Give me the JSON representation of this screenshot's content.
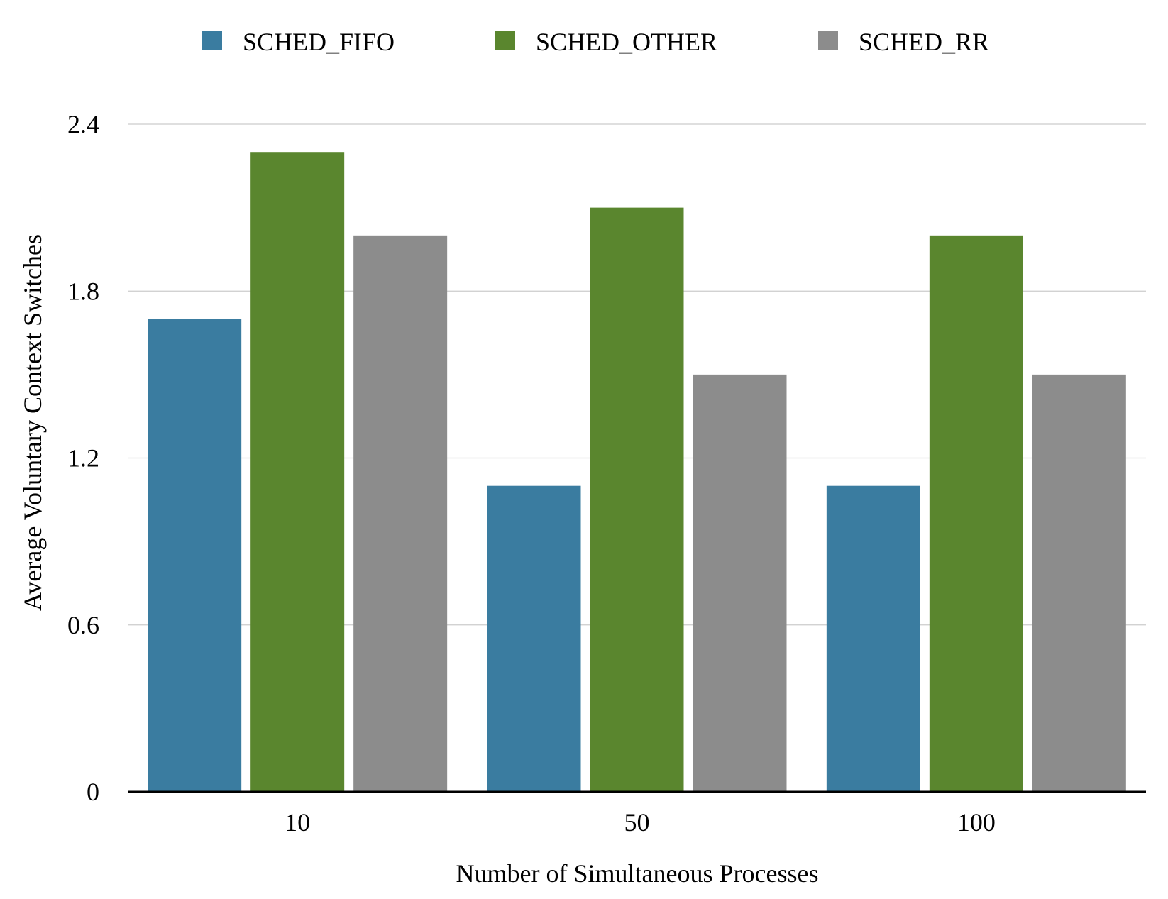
{
  "chart_data": {
    "type": "bar",
    "title": "",
    "xlabel": "Number of Simultaneous Processes",
    "ylabel": "Average Voluntary Context Switches",
    "categories": [
      "10",
      "50",
      "100"
    ],
    "series": [
      {
        "name": "SCHED_FIFO",
        "color": "#3a7ca0",
        "values": [
          1.7,
          1.1,
          1.1
        ]
      },
      {
        "name": "SCHED_OTHER",
        "color": "#5a862e",
        "values": [
          2.3,
          2.1,
          2.0
        ]
      },
      {
        "name": "SCHED_RR",
        "color": "#8c8c8c",
        "values": [
          2.0,
          1.5,
          1.5
        ]
      }
    ],
    "ylim": [
      0,
      2.4
    ],
    "yticks": [
      "0",
      "0.6",
      "1.2",
      "1.8",
      "2.4"
    ],
    "yticks_values": [
      0,
      0.6,
      1.2,
      1.8,
      2.4
    ],
    "grid": true,
    "legend_position": "top"
  }
}
